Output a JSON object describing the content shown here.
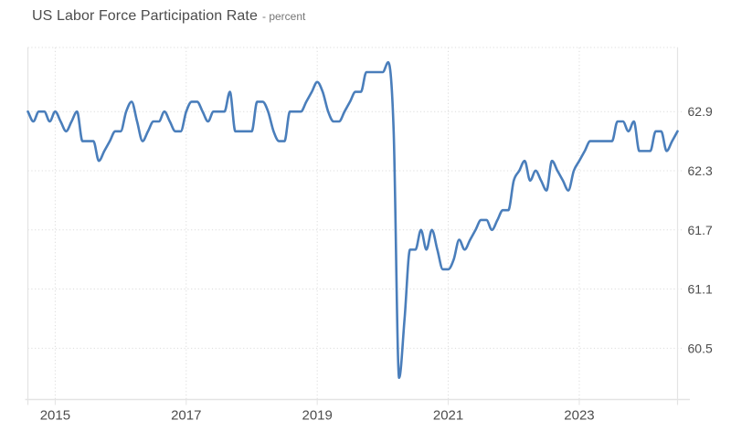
{
  "header": {
    "title": "US Labor Force Participation Rate",
    "subtitle": "- percent"
  },
  "chart_data": {
    "type": "line",
    "title": "US Labor Force Participation Rate",
    "ylabel": "percent",
    "frequency": "monthly",
    "start": "2014-08",
    "end": "2024-07",
    "series": [
      {
        "name": "US Labor Force Participation Rate",
        "values": [
          62.9,
          62.8,
          62.9,
          62.9,
          62.8,
          62.9,
          62.8,
          62.7,
          62.8,
          62.9,
          62.6,
          62.6,
          62.6,
          62.4,
          62.5,
          62.6,
          62.7,
          62.7,
          62.9,
          63.0,
          62.8,
          62.6,
          62.7,
          62.8,
          62.8,
          62.9,
          62.8,
          62.7,
          62.7,
          62.9,
          63.0,
          63.0,
          62.9,
          62.8,
          62.9,
          62.9,
          62.9,
          63.1,
          62.7,
          62.7,
          62.7,
          62.7,
          63.0,
          63.0,
          62.9,
          62.7,
          62.6,
          62.6,
          62.9,
          62.9,
          62.9,
          63.0,
          63.1,
          63.2,
          63.1,
          62.9,
          62.8,
          62.8,
          62.9,
          63.0,
          63.1,
          63.1,
          63.3,
          63.3,
          63.3,
          63.3,
          63.4,
          62.7,
          60.2,
          60.8,
          61.5,
          61.5,
          61.7,
          61.5,
          61.7,
          61.5,
          61.3,
          61.3,
          61.4,
          61.6,
          61.5,
          61.6,
          61.7,
          61.8,
          61.8,
          61.7,
          61.8,
          61.9,
          61.9,
          62.2,
          62.3,
          62.4,
          62.2,
          62.3,
          62.2,
          62.1,
          62.4,
          62.3,
          62.2,
          62.1,
          62.3,
          62.4,
          62.5,
          62.6,
          62.6,
          62.6,
          62.6,
          62.6,
          62.8,
          62.8,
          62.7,
          62.8,
          62.5,
          62.5,
          62.5,
          62.7,
          62.7,
          62.5,
          62.6,
          62.7
        ]
      }
    ],
    "y_ticks": [
      62.9,
      62.3,
      61.7,
      61.1,
      60.5
    ],
    "x_ticks": [
      2015,
      2017,
      2019,
      2021,
      2023
    ],
    "ylim": [
      59.98,
      63.55
    ],
    "xlim": [
      2014.583,
      2024.5
    ],
    "grid": "dotted",
    "legend": "none",
    "line_color": "#4a7ebb",
    "grid_color": "#dcdcdc",
    "frame_color": "#e4e4e4",
    "axis_text_color": "#4d4d4d"
  }
}
